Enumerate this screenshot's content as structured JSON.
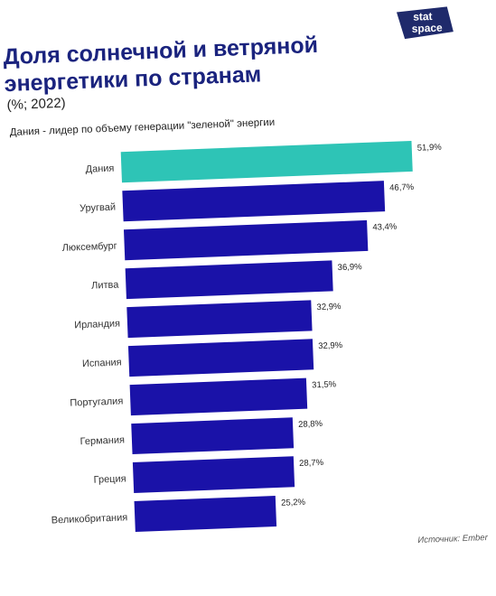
{
  "header": {
    "title_line1": "Доля солнечной и ветряной",
    "title_line2": "энергетики по странам",
    "subtitle": "(%; 2022)",
    "note": "Дания - лидер по объему генерации \"зеленой\" энергии",
    "logo_text_top": "stat",
    "logo_text_bottom": "space"
  },
  "footer": {
    "source": "Источник: Ember"
  },
  "colors": {
    "highlight": "#2ec4b6",
    "bar": "#1a12a8",
    "logo": "#1f2a6b"
  },
  "chart_data": {
    "type": "bar",
    "orientation": "horizontal",
    "categories": [
      "Дания",
      "Уругвай",
      "Люксембург",
      "Литва",
      "Ирландия",
      "Испания",
      "Португалия",
      "Германия",
      "Греция",
      "Великобритания"
    ],
    "values": [
      51.9,
      46.7,
      43.4,
      36.9,
      32.9,
      32.9,
      31.5,
      28.8,
      28.7,
      25.2
    ],
    "value_labels": [
      "51,9%",
      "46,7%",
      "43,4%",
      "36,9%",
      "32,9%",
      "32,9%",
      "31,5%",
      "28,8%",
      "28,7%",
      "25,2%"
    ],
    "highlighted": [
      "Дания"
    ],
    "xlim": [
      0,
      51.9
    ],
    "grid": false,
    "legend": "none"
  }
}
